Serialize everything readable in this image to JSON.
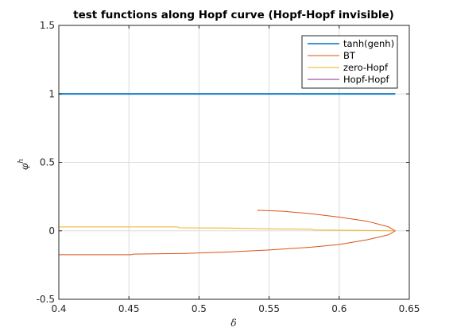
{
  "chart_data": {
    "type": "line",
    "title": "test functions along Hopf curve (Hopf-Hopf invisible)",
    "xlabel": "δ",
    "ylabel": "φ",
    "ylabel_superscript": "h",
    "xlim": [
      0.4,
      0.65
    ],
    "ylim": [
      -0.5,
      1.5
    ],
    "xticks": [
      "0.4",
      "0.45",
      "0.5",
      "0.55",
      "0.6",
      "0.65"
    ],
    "yticks": [
      "-0.5",
      "0",
      "0.5",
      "1",
      "1.5"
    ],
    "grid": true,
    "legend_position": "top-right",
    "series": [
      {
        "name": "tanh(genh)",
        "color": "#0072BD",
        "x": [
          0.4,
          0.45,
          0.5,
          0.55,
          0.6,
          0.64
        ],
        "y": [
          1.0,
          1.0,
          1.0,
          1.0,
          1.0,
          1.0
        ]
      },
      {
        "name": "BT",
        "color": "#D95319",
        "x": [
          0.4,
          0.43,
          0.452,
          0.453,
          0.49,
          0.52,
          0.55,
          0.58,
          0.6,
          0.62,
          0.635,
          0.64,
          0.635,
          0.62,
          0.6,
          0.58,
          0.56,
          0.542,
          0.542
        ],
        "y": [
          -0.175,
          -0.175,
          -0.175,
          -0.17,
          -0.165,
          -0.155,
          -0.14,
          -0.12,
          -0.1,
          -0.065,
          -0.03,
          0.0,
          0.03,
          0.07,
          0.1,
          0.125,
          0.143,
          0.15,
          0.145
        ]
      },
      {
        "name": "zero-Hopf",
        "color": "#EDB120",
        "x": [
          0.4,
          0.45,
          0.485,
          0.486,
          0.52,
          0.55,
          0.58,
          0.582,
          0.61,
          0.64
        ],
        "y": [
          0.028,
          0.028,
          0.028,
          0.022,
          0.02,
          0.015,
          0.012,
          0.006,
          0.004,
          0.0
        ]
      },
      {
        "name": "Hopf-Hopf",
        "color": "#7E2F8E",
        "x": [],
        "y": []
      }
    ]
  }
}
